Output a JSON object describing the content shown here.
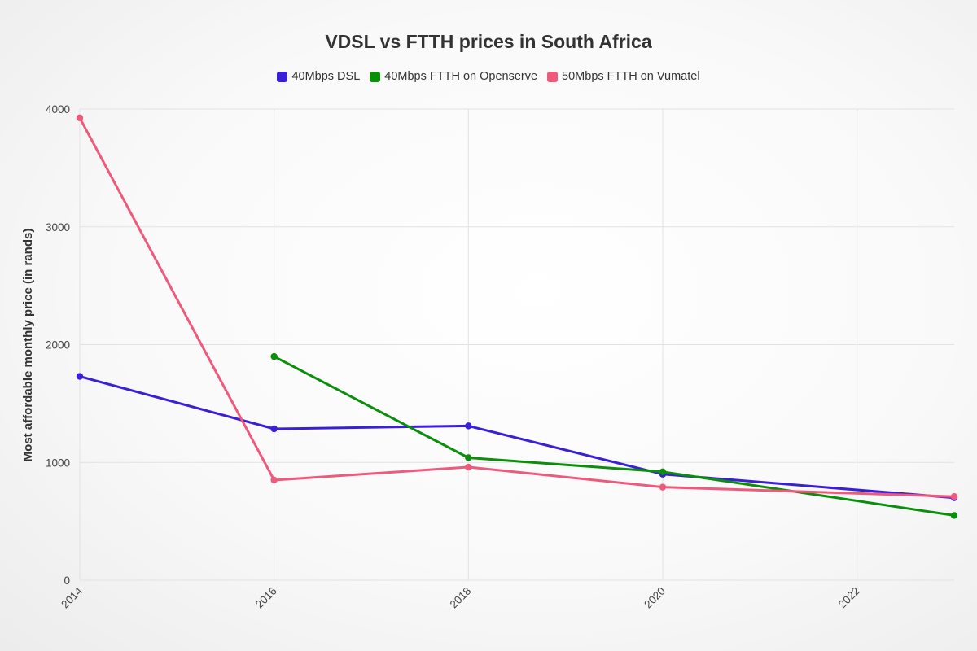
{
  "chart_data": {
    "type": "line",
    "title": "VDSL vs FTTH prices in South Africa",
    "xlabel": "",
    "ylabel": "Most affordable monthly price (in rands)",
    "xlim": [
      2014,
      2023
    ],
    "ylim": [
      0,
      4000
    ],
    "x_ticks": [
      2014,
      2016,
      2018,
      2020,
      2022
    ],
    "y_ticks": [
      0,
      1000,
      2000,
      3000,
      4000
    ],
    "grid": true,
    "legend_position": "top-center",
    "series": [
      {
        "name": "40Mbps DSL",
        "color": "#3a1fd9",
        "x": [
          2014,
          2016,
          2018,
          2020,
          2023
        ],
        "values": [
          1730,
          1285,
          1310,
          900,
          700
        ]
      },
      {
        "name": "40Mbps FTTH on Openserve",
        "color": "#0b8f0b",
        "x": [
          2016,
          2018,
          2020,
          2023
        ],
        "values": [
          1899,
          1040,
          920,
          550
        ]
      },
      {
        "name": "50Mbps FTTH on Vumatel",
        "color": "#ef5a7c",
        "x": [
          2014,
          2016,
          2018,
          2020,
          2023
        ],
        "values": [
          3925,
          850,
          960,
          790,
          710
        ]
      }
    ]
  }
}
